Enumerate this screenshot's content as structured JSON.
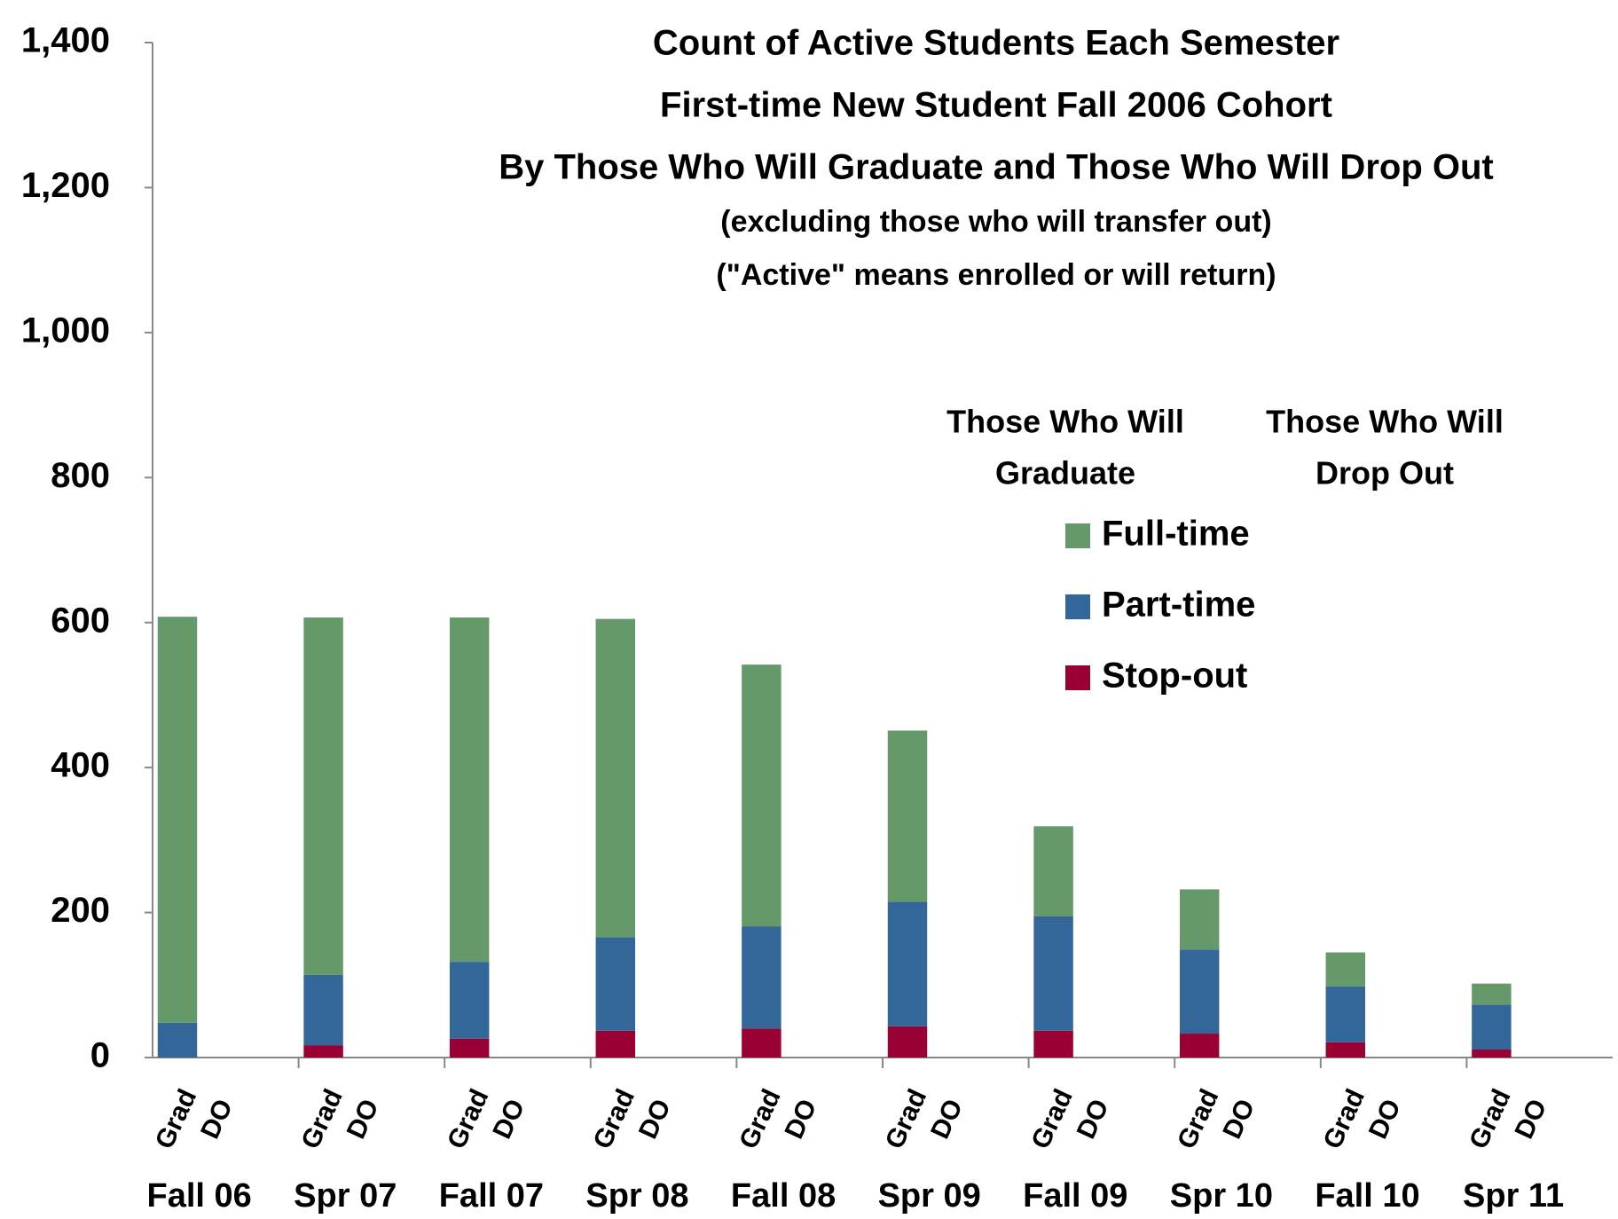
{
  "chart_data": {
    "type": "stacked_bar",
    "title": [
      "Count of Active Students Each Semester",
      "First-time New Student Fall 2006 Cohort",
      "By Those Who Will Graduate and Those Who Will Drop Out"
    ],
    "subtitle": [
      "(excluding those who will transfer out)",
      "(\"Active\" means enrolled or will return)"
    ],
    "legend_headers": [
      [
        "Those Who Will",
        "Graduate"
      ],
      [
        "Those Who Will",
        "Drop Out"
      ]
    ],
    "groups": [
      "Fall 06",
      "Spr 07",
      "Fall 07",
      "Spr 08",
      "Fall 08",
      "Spr 09",
      "Fall 09",
      "Spr 10",
      "Fall 10",
      "Spr 11"
    ],
    "categories": [
      "Grad",
      "DO",
      "Grad",
      "DO",
      "Grad",
      "DO",
      "Grad",
      "DO",
      "Grad",
      "DO",
      "Grad",
      "DO",
      "Grad",
      "DO",
      "Grad",
      "DO",
      "Grad",
      "DO",
      "Grad",
      "DO"
    ],
    "series": [
      {
        "name": "Stop-out",
        "color": "#990033",
        "values": [
          0,
          null,
          17,
          null,
          26,
          null,
          37,
          null,
          40,
          null,
          43,
          null,
          37,
          null,
          33,
          null,
          21,
          null,
          11,
          null
        ]
      },
      {
        "name": "Part-time",
        "color": "#336699",
        "values": [
          48,
          null,
          97,
          null,
          106,
          null,
          129,
          null,
          141,
          null,
          172,
          null,
          158,
          null,
          116,
          null,
          77,
          null,
          62,
          null
        ]
      },
      {
        "name": "Full-time",
        "color": "#66996a",
        "values": [
          560,
          null,
          493,
          null,
          475,
          null,
          439,
          null,
          361,
          null,
          236,
          null,
          124,
          null,
          83,
          null,
          47,
          null,
          29,
          null
        ]
      }
    ],
    "ylim": [
      0,
      1400
    ],
    "yticks": [
      0,
      200,
      400,
      600,
      800,
      {
        "value": 1000,
        "label": "1,000"
      },
      {
        "value": 1200,
        "label": "1,200"
      },
      {
        "value": 1400,
        "label": "1,400"
      }
    ],
    "grid": false
  }
}
